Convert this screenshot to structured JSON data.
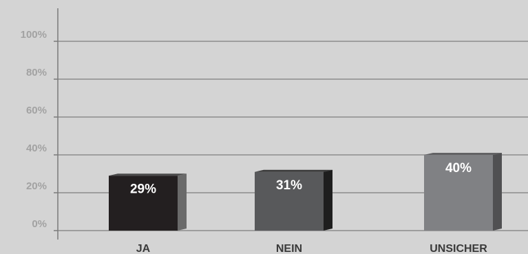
{
  "chart_data": {
    "type": "bar",
    "title": "",
    "xlabel": "",
    "ylabel": "",
    "categories": [
      "JA",
      "NEIN",
      "UNSICHER"
    ],
    "values": [
      29,
      31,
      40
    ],
    "data_labels": [
      "29%",
      "31%",
      "40%"
    ],
    "ylim": [
      0,
      100
    ],
    "yticks": [
      {
        "value": 0,
        "label": "0%"
      },
      {
        "value": 20,
        "label": "20%"
      },
      {
        "value": 40,
        "label": "40%"
      },
      {
        "value": 60,
        "label": "60%"
      },
      {
        "value": 80,
        "label": "80%"
      },
      {
        "value": 100,
        "label": "100%"
      }
    ],
    "grid": true,
    "legend": "none",
    "colors": {
      "background": "#d4d4d4",
      "grid": "#8c8c8c",
      "axis": "#7a7a7a",
      "bars": [
        {
          "front": "#231f20",
          "side": "#6a6a6a",
          "top": "#4a4a4a"
        },
        {
          "front": "#58595b",
          "side": "#1e1e1e",
          "top": "#3a3a3a"
        },
        {
          "front": "#808184",
          "side": "#505052",
          "top": "#626264"
        }
      ]
    }
  }
}
